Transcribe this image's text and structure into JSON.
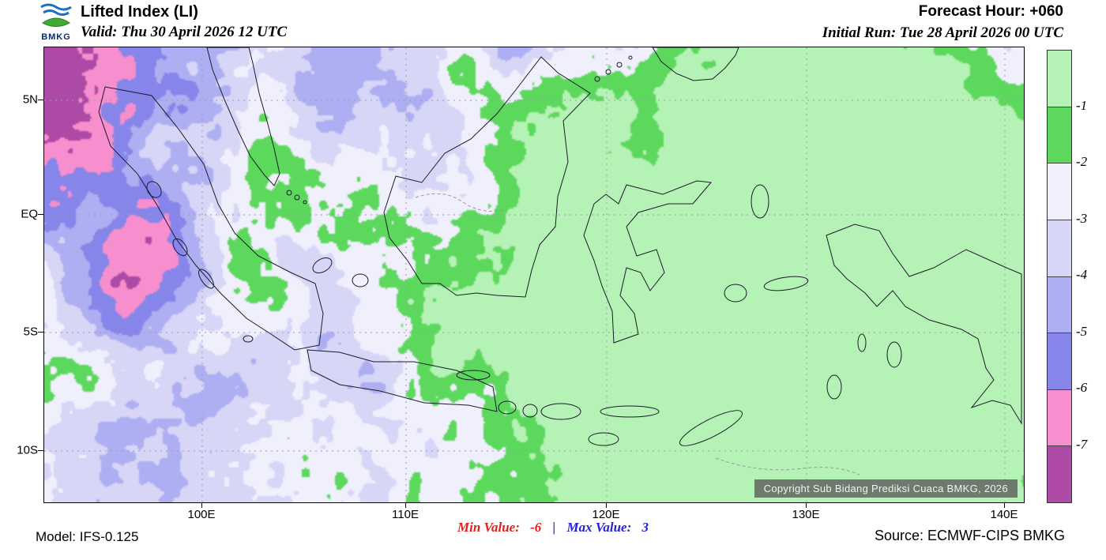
{
  "header": {
    "logo_text": "BMKG",
    "title": "Lifted Index (LI)",
    "valid_label": "Valid: Thu 30 April 2026 12 UTC",
    "forecast_hour": "Forecast Hour: +060",
    "initial_run": "Initial Run: Tue 28 April 2026 00 UTC"
  },
  "map": {
    "y_ticks": [
      "5N",
      "EQ",
      "5S",
      "10S"
    ],
    "x_ticks": [
      "100E",
      "110E",
      "120E",
      "130E",
      "140E"
    ],
    "copyright": "Copyright Sub Bidang Prediksi Cuaca BMKG, 2026"
  },
  "legend": {
    "labels": [
      "-1",
      "-2",
      "-3",
      "-4",
      "-5",
      "-6",
      "-7"
    ]
  },
  "footer": {
    "model": "Model: IFS-0.125",
    "min_label": "Min Value:",
    "min_value": "-6",
    "separator": "|",
    "max_label": "Max Value:",
    "max_value": "3",
    "source": "Source: ECMWF-CIPS BMKG",
    "min_color": "#e3201b",
    "max_color": "#2222d6"
  },
  "chart_data": {
    "type": "heatmap",
    "title": "Lifted Index (LI)",
    "valid_time": "Thu 30 April 2026 12 UTC",
    "forecast_hour": "+060",
    "initial_run": "Tue 28 April 2026 00 UTC",
    "model": "IFS-0.125",
    "source": "ECMWF-CIPS BMKG",
    "min_value": -6,
    "max_value": 3,
    "x_axis": {
      "ticks": [
        "100E",
        "110E",
        "120E",
        "130E",
        "140E"
      ]
    },
    "y_axis": {
      "ticks": [
        "5N",
        "EQ",
        "5S",
        "10S"
      ]
    },
    "legend": {
      "tick_labels": [
        "-1",
        "-2",
        "-3",
        "-4",
        "-5",
        "-6",
        "-7"
      ],
      "colors_top_to_bottom": [
        "#b5f2b5",
        "#5cd85c",
        "#f0effc",
        "#d7d6f7",
        "#aeaef2",
        "#8585ea",
        "#f78fce",
        "#ad4aa5"
      ],
      "meaning": "Lifted Index bands; green = LI > -2, lavender/blue = -2 to -6, pink/magenta = below -6"
    },
    "region": "Indonesia",
    "grid": "dashed graticule every 5 degrees latitude / 10 degrees longitude"
  }
}
